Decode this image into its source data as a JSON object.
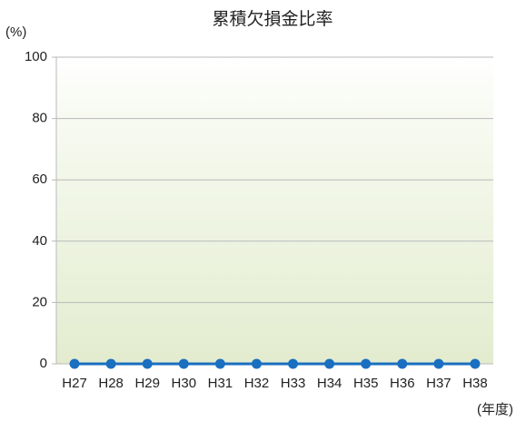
{
  "chart_data": {
    "type": "line",
    "title": "累積欠損金比率",
    "y_label": "(%)",
    "x_label": "(年度)",
    "categories": [
      "H27",
      "H28",
      "H29",
      "H30",
      "H31",
      "H32",
      "H33",
      "H34",
      "H35",
      "H36",
      "H37",
      "H38"
    ],
    "series": [
      {
        "name": "累積欠損金比率",
        "color": "#1a6fc0",
        "values": [
          0,
          0,
          0,
          0,
          0,
          0,
          0,
          0,
          0,
          0,
          0,
          0
        ]
      }
    ],
    "ylim": [
      0,
      100
    ],
    "yticks": [
      0,
      20,
      40,
      60,
      80,
      100
    ],
    "grid": true
  }
}
